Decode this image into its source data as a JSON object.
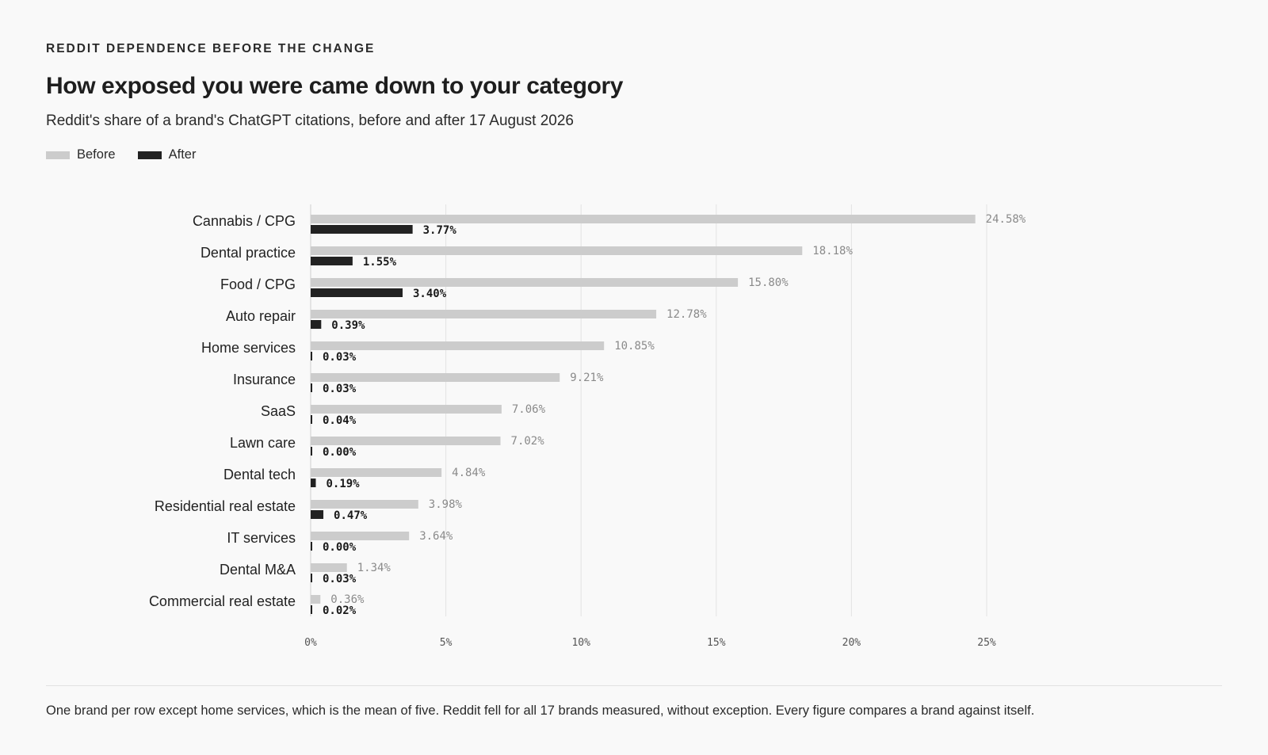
{
  "header": {
    "eyebrow": "REDDIT DEPENDENCE BEFORE THE CHANGE",
    "title": "How exposed you were came down to your category",
    "subtitle": "Reddit's share of a brand's ChatGPT citations, before and after 17 August 2026"
  },
  "legend": {
    "before_label": "Before",
    "after_label": "After"
  },
  "footnote": "One brand per row except home services, which is the mean of five. Reddit fell for all 17 brands measured, without exception. Every figure compares a brand against itself.",
  "colors": {
    "before": "#cccccc",
    "after": "#222222",
    "grid": "#e3e3e3",
    "background": "#f9f9f9"
  },
  "chart_data": {
    "type": "bar",
    "orientation": "horizontal",
    "categories": [
      "Cannabis / CPG",
      "Dental practice",
      "Food / CPG",
      "Auto repair",
      "Home services",
      "Insurance",
      "SaaS",
      "Lawn care",
      "Dental tech",
      "Residential real estate",
      "IT services",
      "Dental M&A",
      "Commercial real estate"
    ],
    "series": [
      {
        "name": "Before",
        "values": [
          24.58,
          18.18,
          15.8,
          12.78,
          10.85,
          9.21,
          7.06,
          7.02,
          4.84,
          3.98,
          3.64,
          1.34,
          0.36
        ],
        "labels": [
          "24.58%",
          "18.18%",
          "15.80%",
          "12.78%",
          "10.85%",
          "9.21%",
          "7.06%",
          "7.02%",
          "4.84%",
          "3.98%",
          "3.64%",
          "1.34%",
          "0.36%"
        ]
      },
      {
        "name": "After",
        "values": [
          3.77,
          1.55,
          3.4,
          0.39,
          0.03,
          0.03,
          0.04,
          0.0,
          0.19,
          0.47,
          0.0,
          0.03,
          0.02
        ],
        "labels": [
          "3.77%",
          "1.55%",
          "3.40%",
          "0.39%",
          "0.03%",
          "0.03%",
          "0.04%",
          "0.00%",
          "0.19%",
          "0.47%",
          "0.00%",
          "0.03%",
          "0.02%"
        ]
      }
    ],
    "xlim": [
      0,
      25
    ],
    "xticks": [
      0,
      5,
      10,
      15,
      20,
      25
    ],
    "xtick_labels": [
      "0%",
      "5%",
      "10%",
      "15%",
      "20%",
      "25%"
    ],
    "grid": true,
    "legend": "top-left"
  }
}
